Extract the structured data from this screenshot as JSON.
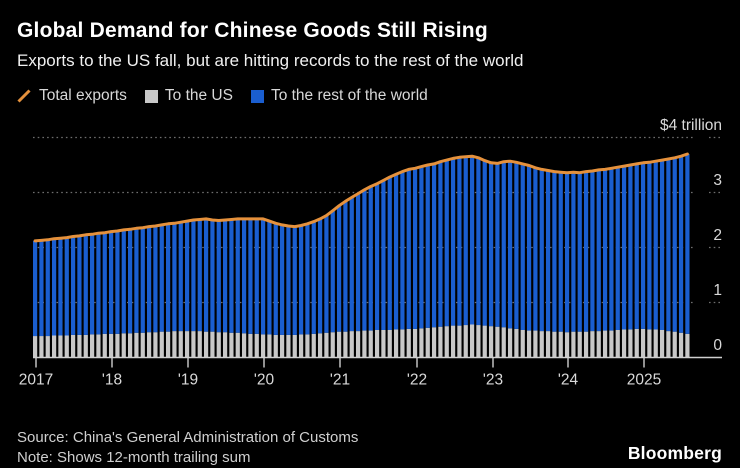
{
  "header": {
    "title": "Global Demand for Chinese Goods Still Rising",
    "subtitle": "Exports to the US fall, but are hitting records to the rest of the world"
  },
  "legend": {
    "items": [
      {
        "label": "Total exports",
        "icon": "orange-slash-icon",
        "color": "#e5913c"
      },
      {
        "label": "To the US",
        "icon": "gray-square-icon",
        "color": "#c8c8c8"
      },
      {
        "label": "To the rest of the world",
        "icon": "blue-square-icon",
        "color": "#1a5ed0"
      }
    ]
  },
  "chart_data": {
    "type": "bar",
    "subtype": "monthly stacked bars with total line overlay",
    "title": "Global Demand for Chinese Goods Still Rising",
    "unit_label": "$4 trillion",
    "x_start": "2017-01",
    "x_end": "2025-08",
    "x_frequency": "monthly",
    "x_tick_labels": [
      "2017",
      "'18",
      "'19",
      "'20",
      "'21",
      "'22",
      "'23",
      "'24",
      "2025"
    ],
    "y_ticks": [
      0,
      1,
      2,
      3,
      4
    ],
    "ylim": [
      0,
      4
    ],
    "grid": "dotted horizontal",
    "legend_position": "top-left above plot",
    "colors": {
      "total_line": "#e5913c",
      "us_bars": "#c8c8c8",
      "rest_of_world_bars": "#1a5ed0"
    },
    "series": [
      {
        "name": "Total exports",
        "type": "line",
        "values": [
          2.12,
          2.13,
          2.14,
          2.16,
          2.17,
          2.18,
          2.2,
          2.21,
          2.23,
          2.24,
          2.26,
          2.27,
          2.29,
          2.3,
          2.32,
          2.33,
          2.35,
          2.36,
          2.38,
          2.39,
          2.41,
          2.43,
          2.44,
          2.46,
          2.48,
          2.5,
          2.51,
          2.52,
          2.5,
          2.49,
          2.5,
          2.51,
          2.52,
          2.52,
          2.52,
          2.52,
          2.52,
          2.48,
          2.44,
          2.41,
          2.39,
          2.38,
          2.4,
          2.43,
          2.47,
          2.52,
          2.58,
          2.67,
          2.76,
          2.84,
          2.91,
          2.98,
          3.05,
          3.11,
          3.16,
          3.22,
          3.28,
          3.33,
          3.38,
          3.42,
          3.44,
          3.47,
          3.5,
          3.52,
          3.56,
          3.59,
          3.62,
          3.64,
          3.65,
          3.66,
          3.63,
          3.58,
          3.54,
          3.53,
          3.56,
          3.57,
          3.55,
          3.52,
          3.49,
          3.45,
          3.42,
          3.4,
          3.38,
          3.37,
          3.36,
          3.37,
          3.36,
          3.38,
          3.39,
          3.41,
          3.42,
          3.44,
          3.46,
          3.48,
          3.5,
          3.52,
          3.54,
          3.55,
          3.57,
          3.59,
          3.61,
          3.63,
          3.66,
          3.7
        ]
      },
      {
        "name": "To the US",
        "type": "bar-stack-bottom",
        "values": [
          0.39,
          0.39,
          0.39,
          0.4,
          0.4,
          0.4,
          0.41,
          0.41,
          0.41,
          0.42,
          0.42,
          0.43,
          0.43,
          0.43,
          0.44,
          0.44,
          0.45,
          0.45,
          0.46,
          0.46,
          0.47,
          0.47,
          0.48,
          0.48,
          0.48,
          0.48,
          0.48,
          0.47,
          0.47,
          0.46,
          0.46,
          0.45,
          0.45,
          0.44,
          0.43,
          0.43,
          0.42,
          0.42,
          0.41,
          0.41,
          0.41,
          0.41,
          0.42,
          0.42,
          0.43,
          0.44,
          0.45,
          0.46,
          0.47,
          0.47,
          0.48,
          0.48,
          0.49,
          0.49,
          0.5,
          0.5,
          0.5,
          0.51,
          0.51,
          0.52,
          0.52,
          0.53,
          0.54,
          0.55,
          0.56,
          0.57,
          0.58,
          0.58,
          0.59,
          0.6,
          0.59,
          0.58,
          0.57,
          0.56,
          0.55,
          0.53,
          0.52,
          0.5,
          0.49,
          0.49,
          0.48,
          0.48,
          0.47,
          0.47,
          0.46,
          0.47,
          0.47,
          0.47,
          0.48,
          0.48,
          0.49,
          0.49,
          0.5,
          0.51,
          0.51,
          0.52,
          0.52,
          0.51,
          0.51,
          0.5,
          0.48,
          0.47,
          0.45,
          0.43
        ]
      },
      {
        "name": "To the rest of the world",
        "type": "bar-stack-top",
        "derived": "total_minus_us"
      }
    ]
  },
  "footer": {
    "source": "Source: China's General Administration of Customs",
    "note": "Note: Shows 12-month trailing sum",
    "brand": "Bloomberg"
  }
}
